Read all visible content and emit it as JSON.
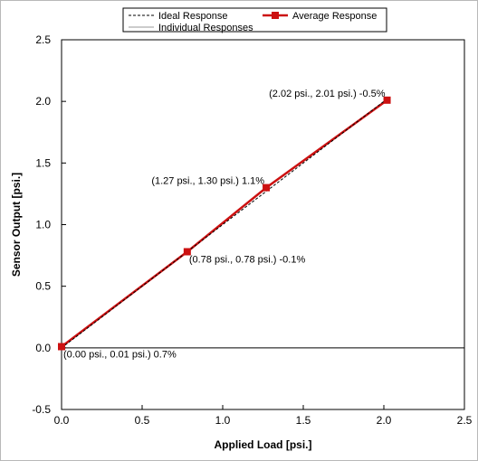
{
  "chart_data": {
    "type": "line",
    "xlabel": "Applied Load [psi.]",
    "ylabel": "Sensor Output [psi.]",
    "xlim": [
      0,
      2.5
    ],
    "ylim": [
      -0.5,
      2.5
    ],
    "xticks": [
      "0.0",
      "0.5",
      "1.0",
      "1.5",
      "2.0",
      "2.5"
    ],
    "yticks": [
      "-0.5",
      "0.0",
      "0.5",
      "1.0",
      "1.5",
      "2.0",
      "2.5"
    ],
    "grid": false,
    "legend_position": "top",
    "series": [
      {
        "name": "Ideal Response",
        "style": "dashed",
        "color": "#000000",
        "x": [
          0,
          2.02
        ],
        "y": [
          0,
          2.02
        ]
      },
      {
        "name": "Average Response",
        "style": "solid-square-markers",
        "color": "#cc1111",
        "x": [
          0.0,
          0.78,
          1.27,
          2.02
        ],
        "y": [
          0.01,
          0.78,
          1.3,
          2.01
        ]
      },
      {
        "name": "Individual Responses",
        "style": "thin",
        "color": "#999999",
        "x": [
          0.0,
          0.78,
          1.27,
          2.02
        ],
        "y": [
          0.01,
          0.78,
          1.3,
          2.01
        ]
      }
    ],
    "annotations": [
      {
        "text": "(0.00 psi., 0.01 psi.) 0.7%",
        "x": 0.0,
        "y": 0.01,
        "anchor": "below-right"
      },
      {
        "text": "(0.78 psi., 0.78 psi.) -0.1%",
        "x": 0.78,
        "y": 0.78,
        "anchor": "below-right"
      },
      {
        "text": "(1.27 psi., 1.30 psi.) 1.1%",
        "x": 1.27,
        "y": 1.3,
        "anchor": "above-left"
      },
      {
        "text": "(2.02 psi., 2.01 psi.) -0.5%",
        "x": 2.02,
        "y": 2.01,
        "anchor": "above-left"
      }
    ]
  }
}
